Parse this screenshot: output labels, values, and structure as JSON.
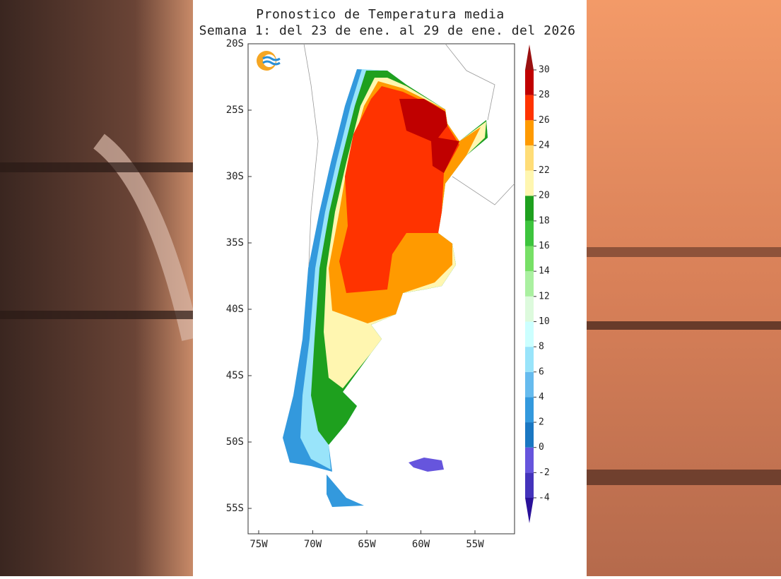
{
  "header": {
    "title": "Pronostico de Temperatura media",
    "subtitle": "Semana 1: del 23 de ene. al 29 de ene. del 2026"
  },
  "map": {
    "lat_labels": [
      "20S",
      "25S",
      "30S",
      "35S",
      "40S",
      "45S",
      "50S",
      "55S"
    ],
    "lon_labels": [
      "75W",
      "70W",
      "65W",
      "60W",
      "55W"
    ],
    "colorbar": {
      "ticks": [
        -4,
        -2,
        0,
        2,
        4,
        6,
        8,
        10,
        12,
        14,
        16,
        18,
        20,
        22,
        24,
        26,
        28,
        30
      ],
      "colors": [
        "#2a1199",
        "#4433bb",
        "#6655dd",
        "#1a77c2",
        "#3399dd",
        "#66bbee",
        "#99e4fa",
        "#ccffff",
        "#ddfadd",
        "#aaf0a0",
        "#77e066",
        "#3dc43d",
        "#1ea01e",
        "#fff6b0",
        "#ffdd77",
        "#ff9a00",
        "#ff3300",
        "#c00000",
        "#9a1010"
      ]
    }
  }
}
